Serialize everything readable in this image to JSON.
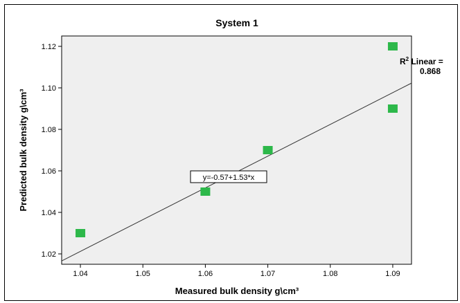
{
  "chart_data": {
    "type": "scatter",
    "title": "System 1",
    "xlabel": "Measured bulk density g\\cm³",
    "ylabel": "Predicted bulk density g\\cm³",
    "xlim": [
      1.037,
      1.093
    ],
    "ylim": [
      1.015,
      1.125
    ],
    "xticks": [
      "1.04",
      "1.05",
      "1.06",
      "1.07",
      "1.08",
      "1.09"
    ],
    "yticks": [
      "1.02",
      "1.04",
      "1.06",
      "1.08",
      "1.10",
      "1.12"
    ],
    "points": [
      {
        "x": 1.04,
        "y": 1.03
      },
      {
        "x": 1.06,
        "y": 1.05
      },
      {
        "x": 1.07,
        "y": 1.07
      },
      {
        "x": 1.09,
        "y": 1.12
      },
      {
        "x": 1.09,
        "y": 1.09
      }
    ],
    "marker_color": "#2db84a",
    "fit_line": {
      "intercept": -0.57,
      "slope": 1.53,
      "equation_label": "y=-0.57+1.53*x"
    },
    "r2_label_prefix": "R",
    "r2_label_sup": "2",
    "r2_label_suffix": " Linear =",
    "r2_value": "0.868",
    "plot_background": "#efefef"
  }
}
